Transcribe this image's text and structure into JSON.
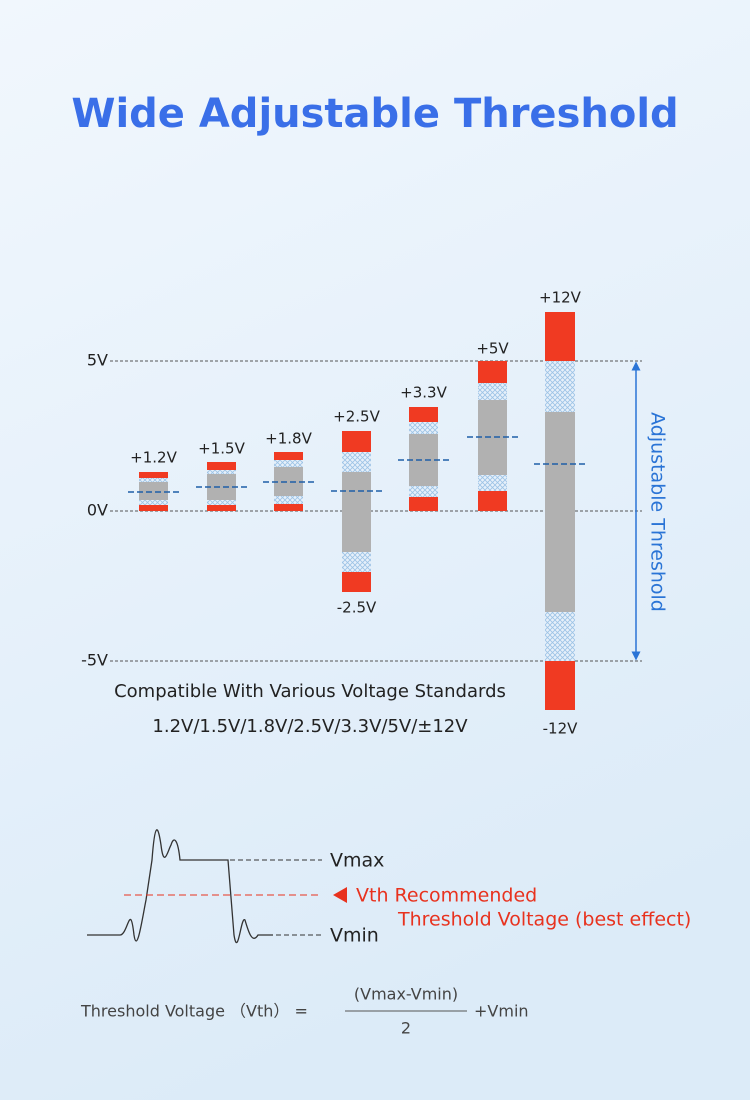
{
  "title": "Wide Adjustable Threshold",
  "axis_labels": [
    "5V",
    "0V",
    "-5V"
  ],
  "bars": [
    {
      "top_label": "+1.2V"
    },
    {
      "top_label": "+1.5V"
    },
    {
      "top_label": "+1.8V"
    },
    {
      "top_label": "+2.5V",
      "bottom_label": "-2.5V"
    },
    {
      "top_label": "+3.3V"
    },
    {
      "top_label": "+5V"
    },
    {
      "top_label": "+12V",
      "bottom_label": "-12V"
    }
  ],
  "side_label": "Adjustable Threshold",
  "caption": [
    "Compatible With Various Voltage Standards",
    "1.2V/1.5V/1.8V/2.5V/3.3V/5V/±12V"
  ],
  "waveform": {
    "vmax": "Vmax",
    "vth": "Vth Recommended",
    "vth_note": "Threshold Voltage (best effect)",
    "vmin": "Vmin"
  },
  "formula": {
    "lhs": "Threshold Voltage （Vth） =",
    "numerator": "(Vmax-Vmin)",
    "denominator": "2",
    "rhs": "+Vmin"
  }
}
